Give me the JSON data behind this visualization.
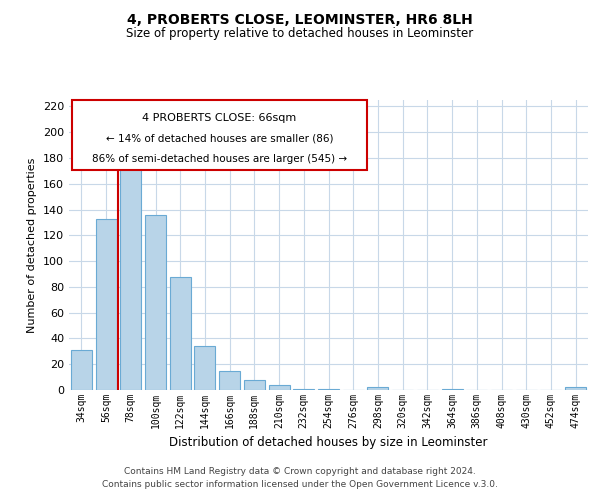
{
  "title": "4, PROBERTS CLOSE, LEOMINSTER, HR6 8LH",
  "subtitle": "Size of property relative to detached houses in Leominster",
  "xlabel": "Distribution of detached houses by size in Leominster",
  "ylabel": "Number of detached properties",
  "bar_labels": [
    "34sqm",
    "56sqm",
    "78sqm",
    "100sqm",
    "122sqm",
    "144sqm",
    "166sqm",
    "188sqm",
    "210sqm",
    "232sqm",
    "254sqm",
    "276sqm",
    "298sqm",
    "320sqm",
    "342sqm",
    "364sqm",
    "386sqm",
    "408sqm",
    "430sqm",
    "452sqm",
    "474sqm"
  ],
  "bar_values": [
    31,
    133,
    173,
    136,
    88,
    34,
    15,
    8,
    4,
    1,
    1,
    0,
    2,
    0,
    0,
    1,
    0,
    0,
    0,
    0,
    2
  ],
  "bar_color": "#b8d4e8",
  "bar_edge_color": "#6aaad4",
  "marker_color": "#cc0000",
  "ylim": [
    0,
    225
  ],
  "yticks": [
    0,
    20,
    40,
    60,
    80,
    100,
    120,
    140,
    160,
    180,
    200,
    220
  ],
  "annotation_title": "4 PROBERTS CLOSE: 66sqm",
  "annotation_line1": "← 14% of detached houses are smaller (86)",
  "annotation_line2": "86% of semi-detached houses are larger (545) →",
  "footer_line1": "Contains HM Land Registry data © Crown copyright and database right 2024.",
  "footer_line2": "Contains public sector information licensed under the Open Government Licence v.3.0.",
  "background_color": "#ffffff",
  "grid_color": "#c8d8e8",
  "annotation_box_color": "#ffffff",
  "annotation_box_edge": "#cc0000"
}
